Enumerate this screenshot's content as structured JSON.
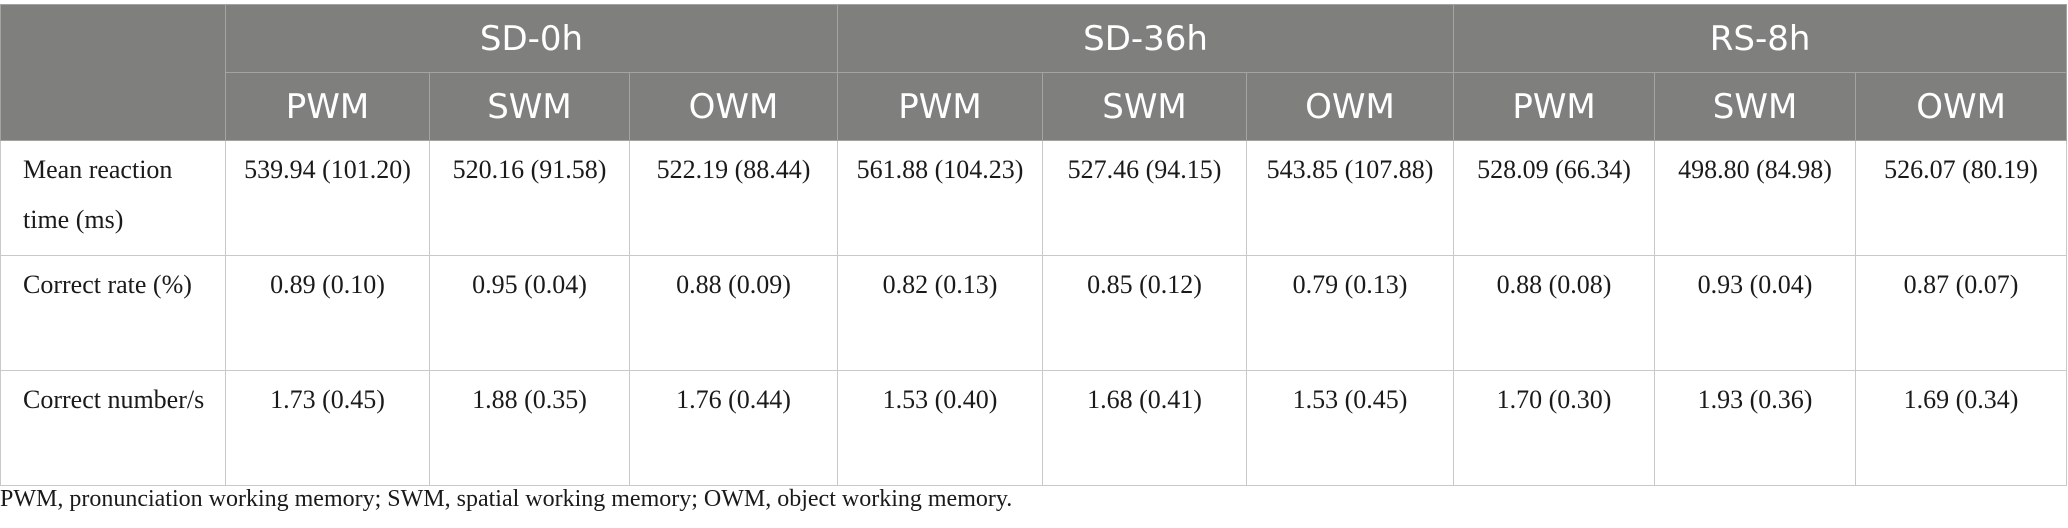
{
  "table": {
    "groups": [
      {
        "label": "SD-0h"
      },
      {
        "label": "SD-36h"
      },
      {
        "label": "RS-8h"
      }
    ],
    "subheaders": [
      "PWM",
      "SWM",
      "OWM",
      "PWM",
      "SWM",
      "OWM",
      "PWM",
      "SWM",
      "OWM"
    ],
    "rows": [
      {
        "label": "Mean reaction time (ms)",
        "cells": [
          "539.94 (101.20)",
          "520.16 (91.58)",
          "522.19 (88.44)",
          "561.88 (104.23)",
          "527.46 (94.15)",
          "543.85 (107.88)",
          "528.09 (66.34)",
          "498.80 (84.98)",
          "526.07 (80.19)"
        ]
      },
      {
        "label": "Correct rate (%)",
        "cells": [
          "0.89 (0.10)",
          "0.95 (0.04)",
          "0.88 (0.09)",
          "0.82 (0.13)",
          "0.85 (0.12)",
          "0.79 (0.13)",
          "0.88 (0.08)",
          "0.93 (0.04)",
          "0.87 (0.07)"
        ]
      },
      {
        "label": "Correct number/s",
        "cells": [
          "1.73 (0.45)",
          "1.88 (0.35)",
          "1.76 (0.44)",
          "1.53 (0.40)",
          "1.68 (0.41)",
          "1.53 (0.45)",
          "1.70 (0.30)",
          "1.93 (0.36)",
          "1.69 (0.34)"
        ]
      }
    ]
  },
  "footnote": "PWM, pronunciation working memory; SWM, spatial working memory; OWM, object working memory."
}
